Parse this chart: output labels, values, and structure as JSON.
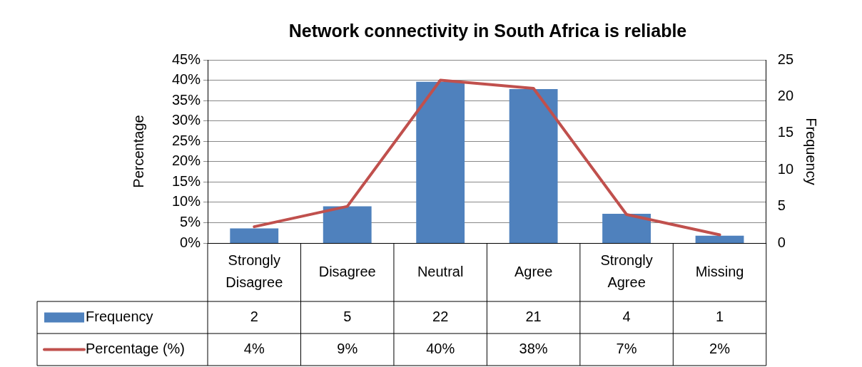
{
  "chart_data": {
    "type": "bar",
    "title": "Network connectivity in South Africa is reliable",
    "ylabel": "Percentage",
    "y2label": "Frequency",
    "categories": [
      "Strongly Disagree",
      "Disagree",
      "Neutral",
      "Agree",
      "Strongly Agree",
      "Missing"
    ],
    "series": [
      {
        "name": "Frequency",
        "axis": "y2",
        "color": "#4f81bd",
        "values": [
          2,
          5,
          22,
          21,
          4,
          1
        ],
        "value_labels": [
          "2",
          "5",
          "22",
          "21",
          "4",
          "1"
        ]
      },
      {
        "name": "Percentage (%)",
        "type": "line",
        "color": "#c0504d",
        "values": [
          4,
          9,
          40,
          38,
          7,
          2
        ],
        "value_labels": [
          "4%",
          "9%",
          "40%",
          "38%",
          "7%",
          "2%"
        ]
      }
    ],
    "ylim": [
      0,
      45
    ],
    "yticks": [
      {
        "value": 0,
        "label": "0%"
      },
      {
        "value": 5,
        "label": "5%"
      },
      {
        "value": 10,
        "label": "10%"
      },
      {
        "value": 15,
        "label": "15%"
      },
      {
        "value": 20,
        "label": "20%"
      },
      {
        "value": 25,
        "label": "25%"
      },
      {
        "value": 30,
        "label": "30%"
      },
      {
        "value": 35,
        "label": "35%"
      },
      {
        "value": 40,
        "label": "40%"
      },
      {
        "value": 45,
        "label": "45%"
      }
    ],
    "y2lim": [
      0,
      25
    ],
    "y2ticks": [
      0,
      5,
      10,
      15,
      20,
      25
    ],
    "grid": "y",
    "legend": "bottom",
    "marker": "none",
    "line_style": "solid"
  }
}
